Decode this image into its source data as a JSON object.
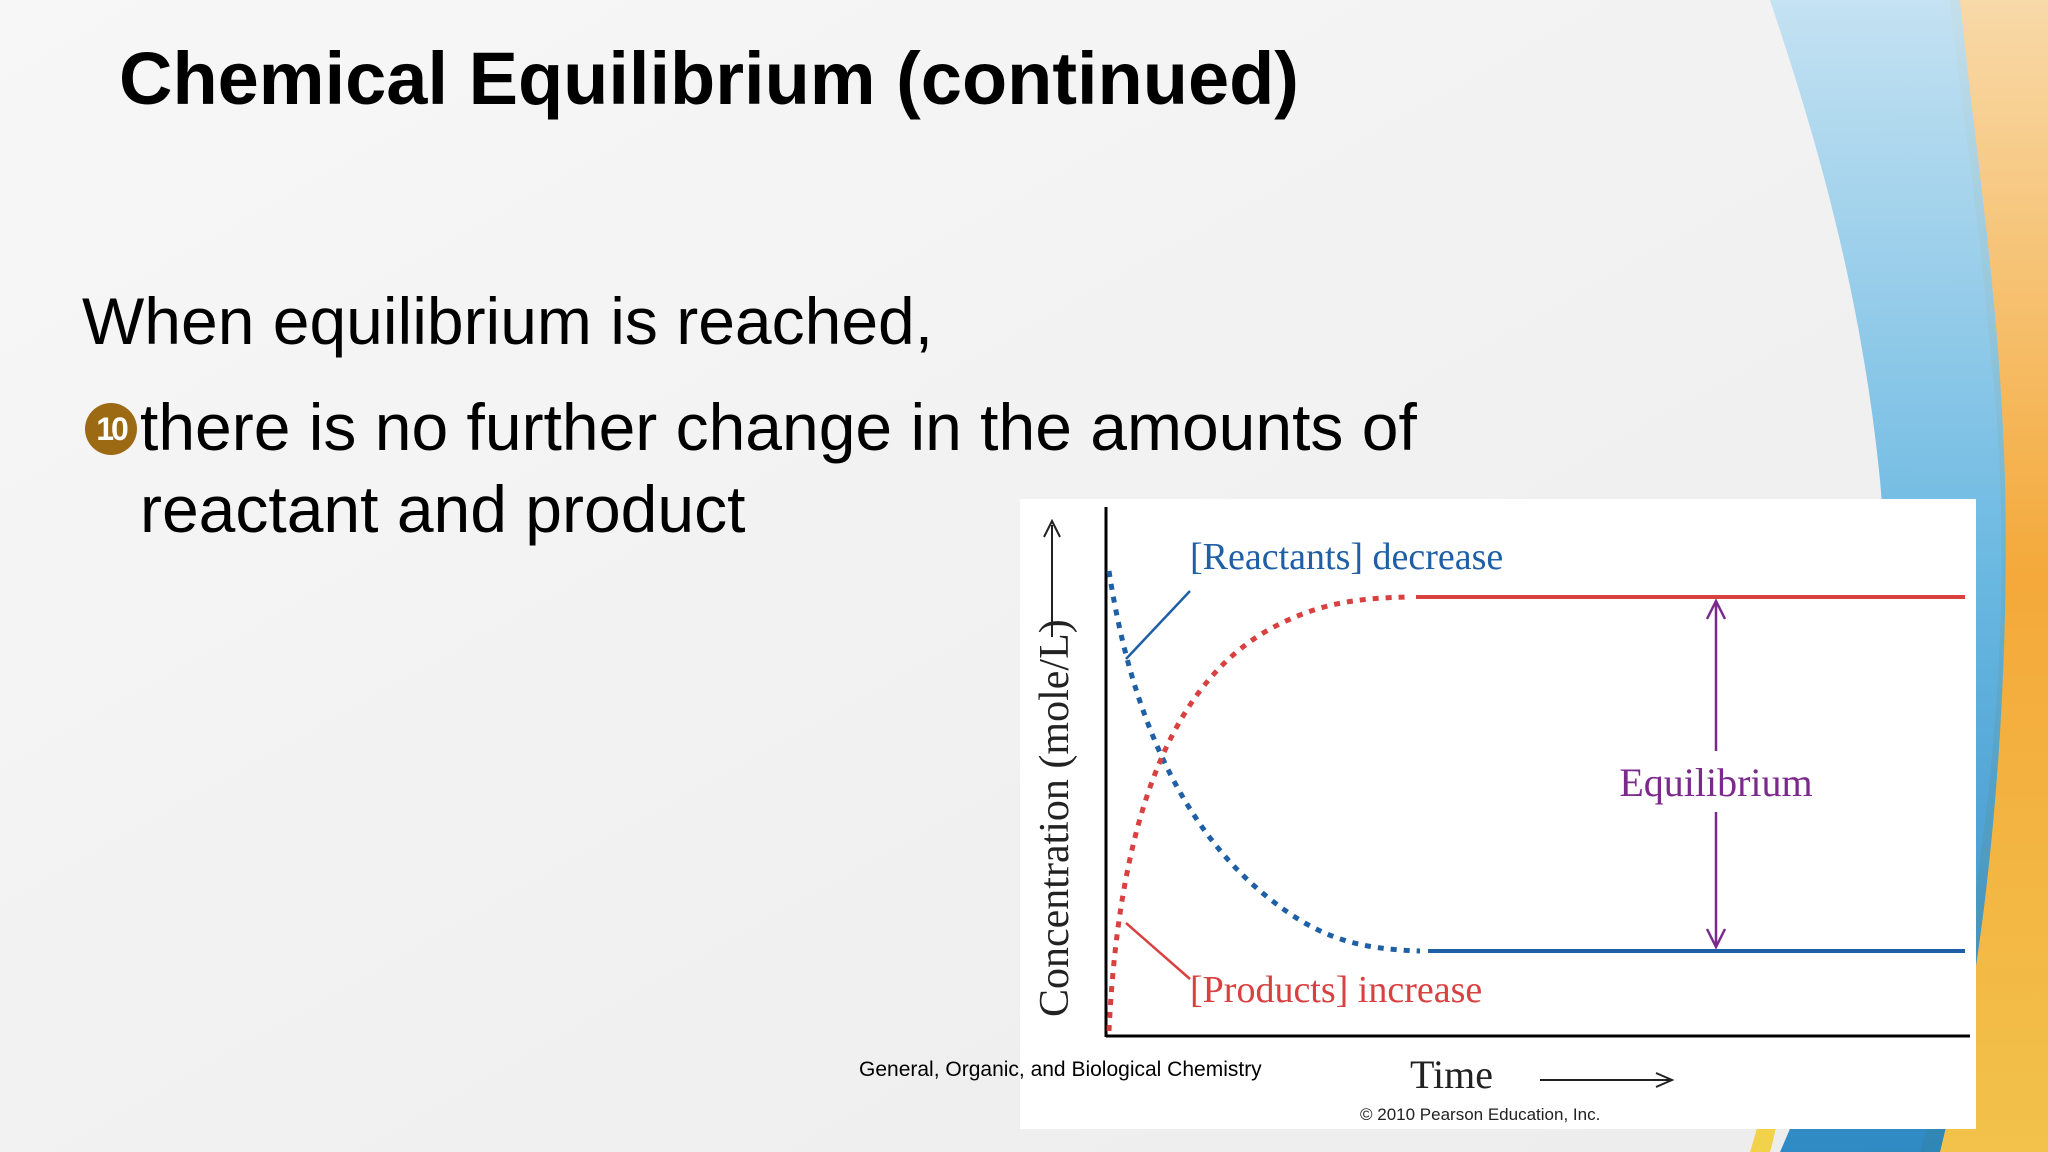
{
  "slide": {
    "title": "Chemical Equilibrium (continued)",
    "intro": "When equilibrium is reached,",
    "bullet": {
      "marker": "10",
      "text": "there is no further change in the amounts of reactant and product"
    },
    "footer": "General, Organic, and Biological Chemistry"
  },
  "figure": {
    "ylabel": "Concentration (mole/L)",
    "xlabel": "Time",
    "reactants_label": "[Reactants] decrease",
    "products_label": "[Products] increase",
    "equilibrium_label": "Equilibrium",
    "copyright": "© 2010 Pearson Education, Inc.",
    "colors": {
      "reactants": "#1f5fa6",
      "products": "#d94040",
      "equilibrium": "#7b2a8c",
      "axis": "#000000"
    }
  },
  "theme": {
    "bullet_color": "#9b6a12",
    "accent_colors": [
      "#f4a93a",
      "#2f8fd0",
      "#f1d24a"
    ]
  }
}
